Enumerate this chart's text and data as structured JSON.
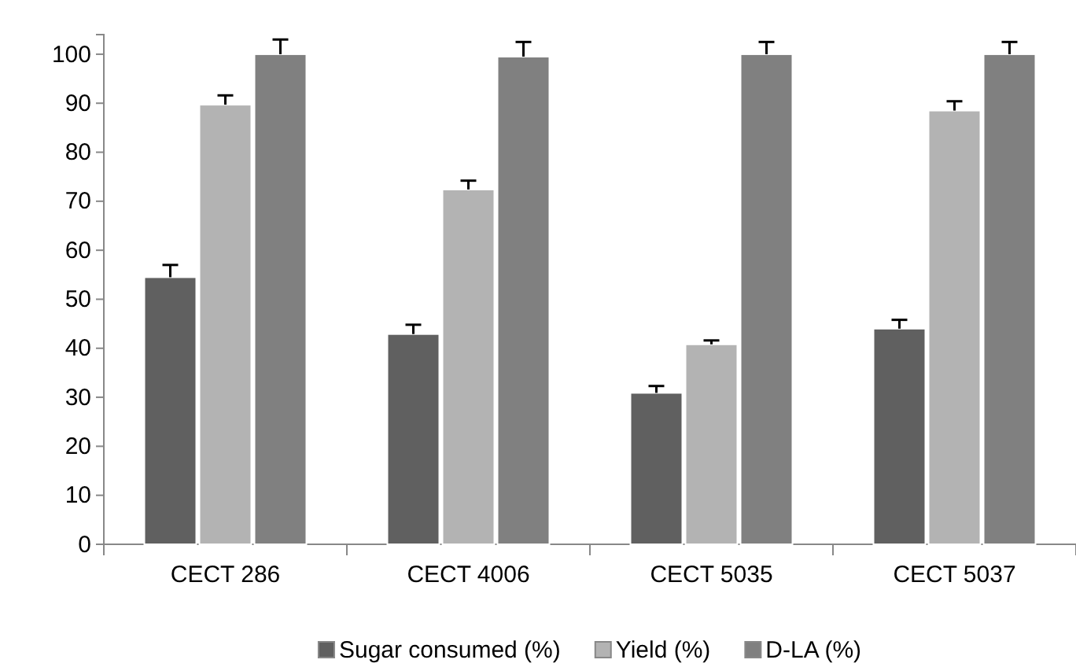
{
  "chart_data": {
    "type": "bar",
    "categories": [
      "CECT 286",
      "CECT 4006",
      "CECT 5035",
      "CECT 5037"
    ],
    "series": [
      {
        "name": "Sugar consumed (%)",
        "color": "#606060",
        "values": [
          54.5,
          42.9,
          30.9,
          44
        ],
        "errors": [
          [
            54.5,
            57
          ],
          [
            42.9,
            44.8
          ],
          [
            30.9,
            32.3
          ],
          [
            44,
            45.8
          ]
        ]
      },
      {
        "name": "Yield (%)",
        "color": "#b3b3b3",
        "values": [
          89.7,
          72.4,
          40.8,
          88.5
        ],
        "errors": [
          [
            89.7,
            91.6
          ],
          [
            72.4,
            74.2
          ],
          [
            40.8,
            41.6
          ],
          [
            88.5,
            90.4
          ]
        ]
      },
      {
        "name": "D-LA (%)",
        "color": "#808080",
        "values": [
          100,
          99.5,
          100,
          100
        ],
        "errors": [
          [
            100,
            103
          ],
          [
            99.5,
            102.5
          ],
          [
            100,
            102.5
          ],
          [
            100,
            102.5
          ]
        ]
      }
    ],
    "ylim": [
      0,
      104
    ],
    "yticks": [
      0,
      10,
      20,
      30,
      40,
      50,
      60,
      70,
      80,
      90,
      100
    ],
    "grid": false,
    "legend": "bottom"
  }
}
